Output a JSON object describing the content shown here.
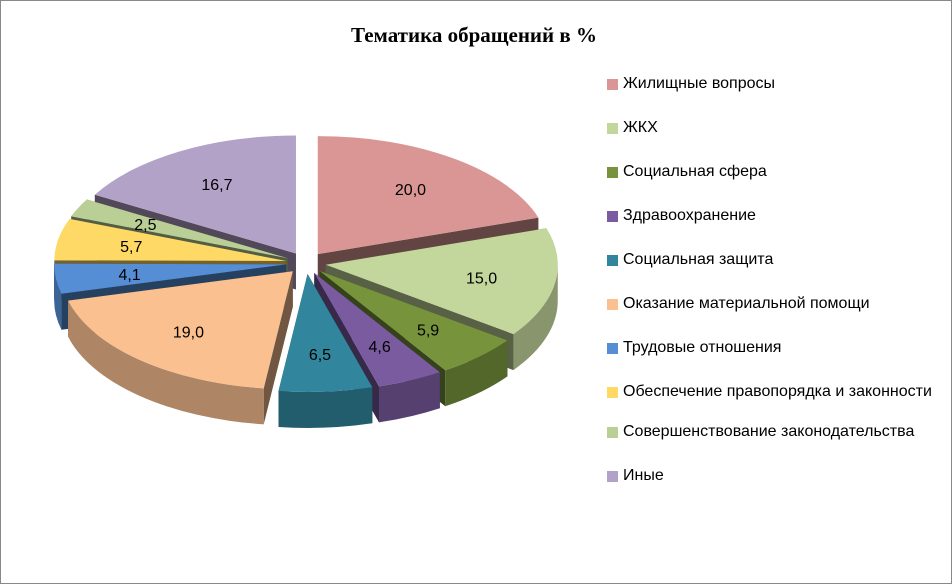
{
  "chart_data": {
    "type": "pie",
    "variant": "3d-exploded",
    "title": "Тематика обращений в %",
    "legend_position": "right",
    "slices": [
      {
        "label": "Жилищные вопросы",
        "value": 20.0,
        "display": "20,0",
        "color": "#D99694"
      },
      {
        "label": "ЖКХ",
        "value": 15.0,
        "display": "15,0",
        "color": "#C3D69B"
      },
      {
        "label": "Социальная сфера",
        "value": 5.9,
        "display": "5,9",
        "color": "#77933C"
      },
      {
        "label": "Здравоохранение",
        "value": 4.6,
        "display": "4,6",
        "color": "#7A5BA0"
      },
      {
        "label": "Социальная защита",
        "value": 6.5,
        "display": "6,5",
        "color": "#31859C"
      },
      {
        "label": "Оказание материальной помощи",
        "value": 19.0,
        "display": "19,0",
        "color": "#FAC090"
      },
      {
        "label": "Трудовые отношения",
        "value": 4.1,
        "display": "4,1",
        "color": "#558ED5"
      },
      {
        "label": "Обеспечение правопорядка и законности",
        "value": 5.7,
        "display": "5,7",
        "color": "#FFD966"
      },
      {
        "label": "Совершенствование законодательства",
        "value": 2.5,
        "display": "2,5",
        "color": "#B9CF96"
      },
      {
        "label": "Иные",
        "value": 16.7,
        "display": "16,7",
        "color": "#B3A2C7"
      }
    ]
  }
}
